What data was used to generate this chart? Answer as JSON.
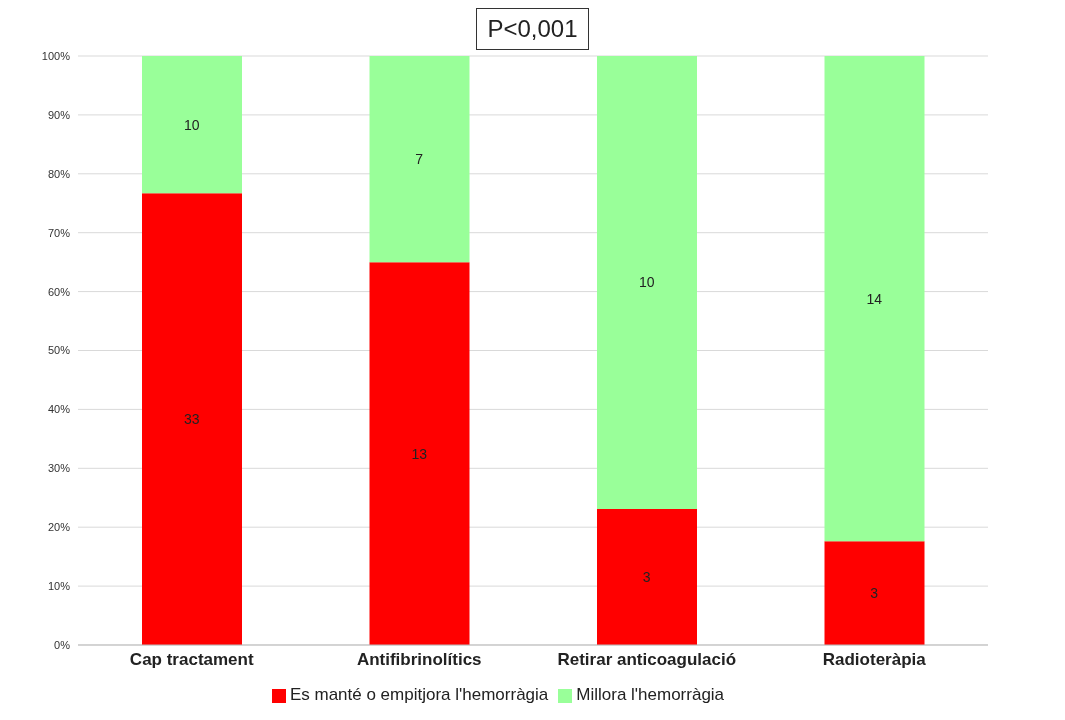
{
  "chart_data": {
    "type": "bar",
    "title": "P<0,001",
    "categories": [
      "Cap tractament",
      "Antifibrinolítics",
      "Retirar anticoagulació",
      "Radioteràpia"
    ],
    "stacked": true,
    "series": [
      {
        "name": "Es manté o empitjora l'hemorràgia",
        "color": "#ff0000",
        "values": [
          76.7,
          65,
          23.1,
          17.6
        ]
      },
      {
        "name": "Millora l'hemorràgia",
        "color": "#99ff99",
        "values": [
          23.3,
          35,
          76.9,
          82.4
        ]
      }
    ],
    "annotations": [
      "33",
      "10",
      "13",
      "7",
      "3",
      "10",
      "3",
      "14"
    ],
    "ylim": [
      0,
      100
    ],
    "yticks": [
      {
        "value": 0,
        "label": "0%"
      },
      {
        "value": 10,
        "label": "10%"
      },
      {
        "value": 20,
        "label": "20%"
      },
      {
        "value": 30,
        "label": "30%"
      },
      {
        "value": 40,
        "label": "40%"
      },
      {
        "value": 50,
        "label": "50%"
      },
      {
        "value": 60,
        "label": "60%"
      },
      {
        "value": 70,
        "label": "70%"
      },
      {
        "value": 80,
        "label": "80%"
      },
      {
        "value": 90,
        "label": "90%"
      },
      {
        "value": 100,
        "label": "100%"
      }
    ],
    "grid": "y",
    "legend": "bottom"
  }
}
